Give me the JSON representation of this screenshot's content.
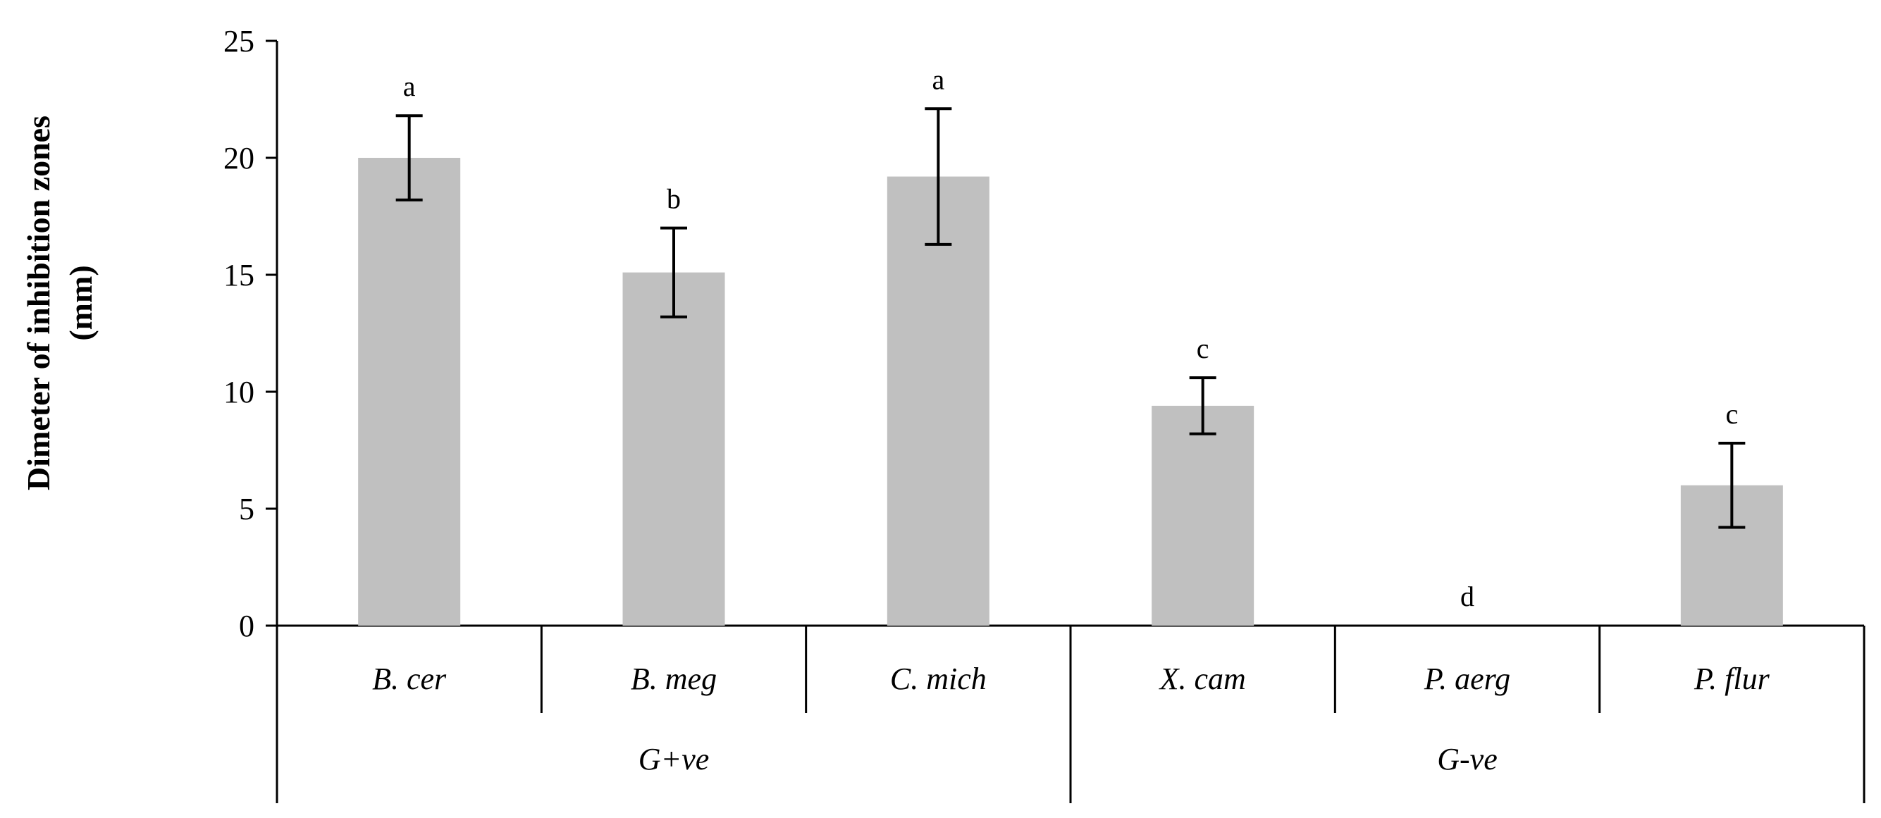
{
  "chart_data": {
    "type": "bar",
    "title": "",
    "ylabel_lines": [
      "Dimeter of inhibition zones",
      "(mm)"
    ],
    "xlabel": "",
    "ylim": [
      0,
      25
    ],
    "yticks": [
      0,
      5,
      10,
      15,
      20,
      25
    ],
    "categories": [
      "B. cer",
      "B. meg",
      "C. mich",
      "X. cam",
      "P. aerg",
      "P. flur"
    ],
    "values": [
      20.0,
      15.1,
      19.2,
      9.4,
      0,
      6.0
    ],
    "errors": [
      1.8,
      1.9,
      2.9,
      1.2,
      0,
      1.8
    ],
    "significance": [
      "a",
      "b",
      "a",
      "c",
      "d",
      "c"
    ],
    "groups": [
      {
        "label": "G+ve",
        "from": 0,
        "to": 2
      },
      {
        "label": "G-ve",
        "from": 3,
        "to": 5
      }
    ],
    "bar_color": "#c0c0c0",
    "grid": false,
    "legend": "none"
  }
}
